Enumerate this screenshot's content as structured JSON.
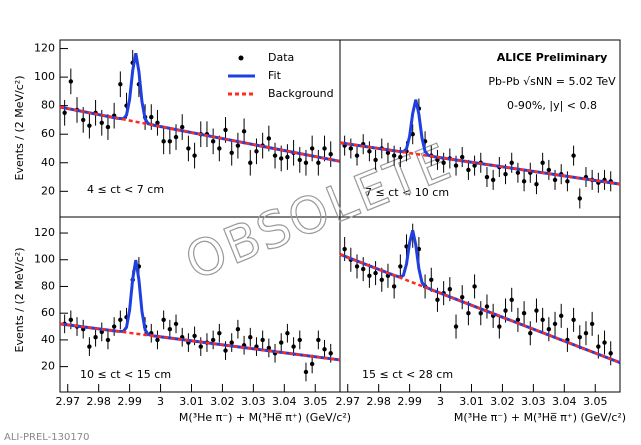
{
  "chart_data": [
    {
      "type": "scatter",
      "label": "4 ≤ ct < 7 cm",
      "y_label": "Events / (2 MeV/c²)",
      "xlim": [
        2.9675,
        3.058
      ],
      "ylim": [
        2,
        126
      ],
      "yticks": [
        20,
        40,
        60,
        80,
        100,
        120
      ],
      "series": [
        {
          "name": "Data",
          "mark": "points",
          "color": "#000000",
          "yerr": 9,
          "x": [
            2.969,
            2.971,
            2.973,
            2.975,
            2.977,
            2.979,
            2.981,
            2.983,
            2.985,
            2.987,
            2.989,
            2.991,
            2.993,
            2.995,
            2.997,
            2.999,
            3.001,
            3.003,
            3.005,
            3.007,
            3.009,
            3.011,
            3.013,
            3.015,
            3.017,
            3.019,
            3.021,
            3.023,
            3.025,
            3.027,
            3.029,
            3.031,
            3.033,
            3.035,
            3.037,
            3.039,
            3.041,
            3.043,
            3.045,
            3.047,
            3.049,
            3.051,
            3.053,
            3.055
          ],
          "values": [
            75,
            97,
            77,
            70,
            66,
            75,
            68,
            65,
            73,
            95,
            80,
            110,
            95,
            72,
            72,
            68,
            55,
            55,
            58,
            65,
            50,
            45,
            60,
            60,
            55,
            50,
            63,
            47,
            52,
            62,
            40,
            48,
            52,
            57,
            45,
            43,
            44,
            47,
            42,
            40,
            50,
            40,
            50,
            46
          ]
        },
        {
          "name": "Fit",
          "mark": "line",
          "color": "#1f3fe0",
          "x": [
            2.9675,
            2.986,
            2.988,
            2.989,
            2.99,
            2.991,
            2.992,
            2.993,
            2.994,
            2.995,
            2.996,
            2.998,
            3.058
          ],
          "values": [
            79,
            71.2,
            70.8,
            73.4,
            84.4,
            104.7,
            116.7,
            103.9,
            82.7,
            70.8,
            67.4,
            66.2,
            41
          ]
        },
        {
          "name": "Background",
          "mark": "dashed",
          "color": "#ff2a1a",
          "x": [
            2.9675,
            3.058
          ],
          "values": [
            79,
            41
          ]
        }
      ]
    },
    {
      "type": "scatter",
      "label": "7 ≤ ct < 10 cm",
      "experiment": "ALICE Preliminary",
      "system": "Pb-Pb √sNN = 5.02 TeV",
      "selection": "0-90%, |y| < 0.8",
      "xlim": [
        2.9675,
        3.058
      ],
      "ylim": [
        2,
        126
      ],
      "series": [
        {
          "mark": "points",
          "color": "#000000",
          "yerr": 7,
          "x": [
            2.969,
            2.971,
            2.973,
            2.975,
            2.977,
            2.979,
            2.981,
            2.983,
            2.985,
            2.987,
            2.989,
            2.991,
            2.993,
            2.995,
            2.997,
            2.999,
            3.001,
            3.003,
            3.005,
            3.007,
            3.009,
            3.011,
            3.013,
            3.015,
            3.017,
            3.019,
            3.021,
            3.023,
            3.025,
            3.027,
            3.029,
            3.031,
            3.033,
            3.035,
            3.037,
            3.039,
            3.041,
            3.043,
            3.045,
            3.047,
            3.049,
            3.051,
            3.053,
            3.055
          ],
          "values": [
            52,
            50,
            45,
            53,
            48,
            42,
            50,
            47,
            45,
            44,
            48,
            60,
            78,
            55,
            45,
            42,
            40,
            43,
            38,
            44,
            35,
            38,
            40,
            30,
            28,
            37,
            32,
            40,
            33,
            27,
            33,
            25,
            40,
            35,
            28,
            32,
            27,
            45,
            15,
            30,
            28,
            26,
            28,
            27
          ]
        },
        {
          "mark": "line",
          "color": "#1f3fe0",
          "x": [
            2.9675,
            2.986,
            2.988,
            2.989,
            2.99,
            2.991,
            2.992,
            2.993,
            2.994,
            2.995,
            2.996,
            2.998,
            3.058
          ],
          "values": [
            54,
            48.1,
            47.7,
            49.8,
            58.6,
            74.6,
            84.2,
            73.9,
            57.3,
            47.9,
            45.2,
            44.2,
            25
          ]
        },
        {
          "mark": "dashed",
          "color": "#ff2a1a",
          "x": [
            2.9675,
            3.058
          ],
          "values": [
            54,
            25
          ]
        }
      ]
    },
    {
      "type": "scatter",
      "label": "10 ≤ ct < 15 cm",
      "y_label": "Events / (2 MeV/c²)",
      "x_label": "M(³He π⁻) + M(³He̅ π⁺) (GeV/c²)",
      "xlim": [
        2.9675,
        3.058
      ],
      "ylim": [
        1,
        132
      ],
      "yticks": [
        20,
        40,
        60,
        80,
        100,
        120
      ],
      "xticks": [
        2.97,
        2.98,
        2.99,
        3,
        3.01,
        3.02,
        3.03,
        3.04,
        3.05
      ],
      "series": [
        {
          "mark": "points",
          "color": "#000000",
          "yerr": 7,
          "x": [
            2.969,
            2.971,
            2.973,
            2.975,
            2.977,
            2.979,
            2.981,
            2.983,
            2.985,
            2.987,
            2.989,
            2.991,
            2.993,
            2.995,
            2.997,
            2.999,
            3.001,
            3.003,
            3.005,
            3.007,
            3.009,
            3.011,
            3.013,
            3.015,
            3.017,
            3.019,
            3.021,
            3.023,
            3.025,
            3.027,
            3.029,
            3.031,
            3.033,
            3.035,
            3.037,
            3.039,
            3.041,
            3.043,
            3.045,
            3.047,
            3.049,
            3.051,
            3.053,
            3.055
          ],
          "values": [
            52,
            55,
            50,
            48,
            35,
            42,
            46,
            40,
            50,
            55,
            57,
            85,
            95,
            50,
            45,
            40,
            55,
            48,
            52,
            42,
            38,
            43,
            35,
            38,
            40,
            45,
            32,
            38,
            48,
            36,
            42,
            35,
            40,
            34,
            30,
            38,
            45,
            35,
            40,
            16,
            22,
            40,
            33,
            30
          ]
        },
        {
          "mark": "line",
          "color": "#1f3fe0",
          "x": [
            2.9675,
            2.986,
            2.988,
            2.989,
            2.99,
            2.991,
            2.992,
            2.993,
            2.994,
            2.995,
            2.996,
            2.998,
            3.058
          ],
          "values": [
            52,
            46.5,
            46.4,
            49.5,
            62.4,
            85.7,
            99.7,
            85.1,
            61.2,
            47.6,
            44.0,
            42.9,
            25
          ]
        },
        {
          "mark": "dashed",
          "color": "#ff2a1a",
          "x": [
            2.9675,
            3.058
          ],
          "values": [
            52,
            25
          ]
        }
      ]
    },
    {
      "type": "scatter",
      "label": "15 ≤ ct < 28 cm",
      "x_label": "M(³He π⁻) + M(³He̅ π⁺) (GeV/c²)",
      "xlim": [
        2.9675,
        3.058
      ],
      "ylim": [
        1,
        132
      ],
      "xticks": [
        2.97,
        2.98,
        2.99,
        3,
        3.01,
        3.02,
        3.03,
        3.04,
        3.05
      ],
      "series": [
        {
          "mark": "points",
          "color": "#000000",
          "yerr": 9,
          "x": [
            2.969,
            2.971,
            2.973,
            2.975,
            2.977,
            2.979,
            2.981,
            2.983,
            2.985,
            2.987,
            2.989,
            2.991,
            2.993,
            2.995,
            2.997,
            2.999,
            3.001,
            3.003,
            3.005,
            3.007,
            3.009,
            3.011,
            3.013,
            3.015,
            3.017,
            3.019,
            3.021,
            3.023,
            3.025,
            3.027,
            3.029,
            3.031,
            3.033,
            3.035,
            3.037,
            3.039,
            3.041,
            3.043,
            3.045,
            3.047,
            3.049,
            3.051,
            3.053,
            3.055
          ],
          "values": [
            108,
            100,
            95,
            93,
            88,
            90,
            85,
            88,
            80,
            95,
            110,
            118,
            108,
            80,
            85,
            70,
            75,
            78,
            50,
            72,
            60,
            80,
            60,
            65,
            58,
            50,
            62,
            70,
            55,
            60,
            45,
            62,
            55,
            48,
            52,
            58,
            40,
            55,
            42,
            45,
            52,
            35,
            38,
            30
          ]
        },
        {
          "mark": "line",
          "color": "#1f3fe0",
          "x": [
            2.9675,
            2.985,
            2.987,
            2.988,
            2.989,
            2.99,
            2.991,
            2.992,
            2.993,
            2.994,
            2.995,
            2.997,
            3.058
          ],
          "values": [
            104,
            88.3,
            86.9,
            88.4,
            96.9,
            112.8,
            122.0,
            111.0,
            93.3,
            83.0,
            79.8,
            77.6,
            23
          ]
        },
        {
          "mark": "dashed",
          "color": "#ff2a1a",
          "x": [
            2.9675,
            3.058
          ],
          "values": [
            104,
            23
          ]
        }
      ]
    }
  ],
  "watermark": "OBSOLETE",
  "footer": "ALI-PREL-130170"
}
